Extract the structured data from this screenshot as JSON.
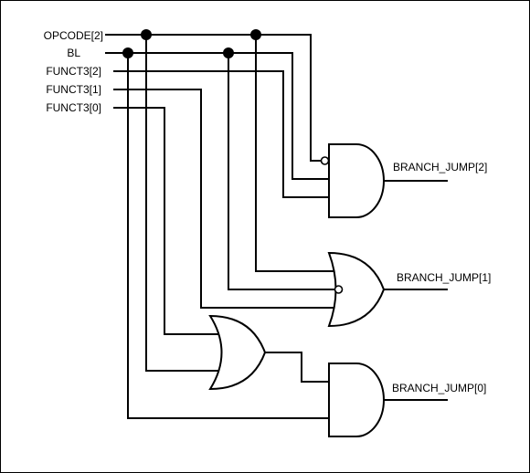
{
  "inputs": {
    "opcode2": "OPCODE[2]",
    "bl": "BL",
    "funct3_2": "FUNCT3[2]",
    "funct3_1": "FUNCT3[1]",
    "funct3_0": "FUNCT3[0]"
  },
  "outputs": {
    "bj2": "BRANCH_JUMP[2]",
    "bj1": "BRANCH_JUMP[1]",
    "bj0": "BRANCH_JUMP[0]"
  },
  "gates": {
    "and_top": "and",
    "or_mid": "or",
    "or_low": "or",
    "and_bottom": "and"
  },
  "colors": {
    "stroke": "#000000",
    "background": "#ffffff"
  }
}
